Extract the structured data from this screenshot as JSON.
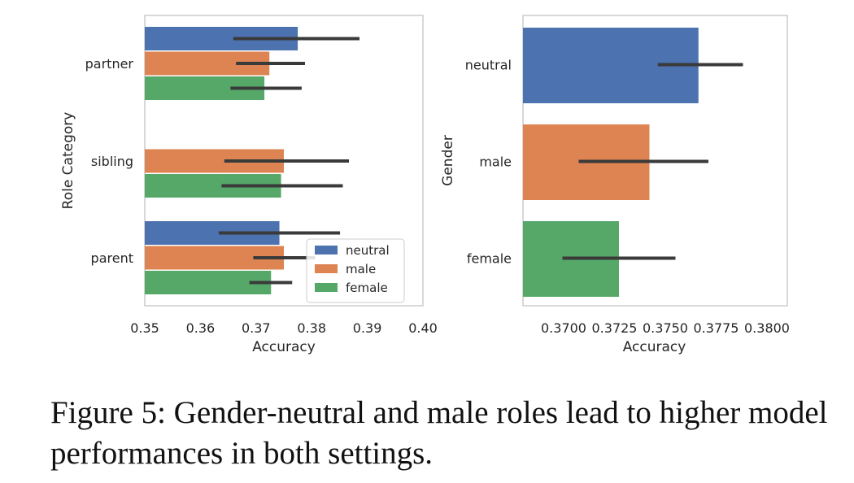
{
  "chart_data": [
    {
      "type": "bar",
      "orientation": "horizontal",
      "categories": [
        "partner",
        "sibling",
        "parent"
      ],
      "series": [
        {
          "name": "neutral",
          "color": "#4c72b0",
          "values": [
            0.3775,
            null,
            0.3742
          ],
          "error": [
            [
              0.3659,
              0.3886
            ],
            null,
            [
              0.3633,
              0.3851
            ]
          ]
        },
        {
          "name": "male",
          "color": "#dd8452",
          "values": [
            0.3724,
            0.375,
            0.375
          ],
          "error": [
            [
              0.3664,
              0.3788
            ],
            [
              0.3643,
              0.3867
            ],
            [
              0.3695,
              0.3806
            ]
          ]
        },
        {
          "name": "female",
          "color": "#55a868",
          "values": [
            0.3715,
            0.3745,
            0.3727
          ],
          "error": [
            [
              0.3654,
              0.3782
            ],
            [
              0.3638,
              0.3856
            ],
            [
              0.3688,
              0.3765
            ]
          ]
        }
      ],
      "xlabel": "Accuracy",
      "ylabel": "Role Category",
      "xlim": [
        0.35,
        0.4
      ],
      "xticks": [
        "0.35",
        "0.36",
        "0.37",
        "0.38",
        "0.39",
        "0.40"
      ],
      "legend": {
        "placement": "lower-right",
        "entries": [
          "neutral",
          "male",
          "female"
        ]
      },
      "grid": false
    },
    {
      "type": "bar",
      "orientation": "horizontal",
      "categories": [
        "neutral",
        "male",
        "female"
      ],
      "colors": [
        "#4c72b0",
        "#dd8452",
        "#55a868"
      ],
      "values": [
        0.37663,
        0.37422,
        0.37272
      ],
      "error": [
        [
          0.37463,
          0.37882
        ],
        [
          0.37074,
          0.37712
        ],
        [
          0.36994,
          0.3755
        ]
      ],
      "xlabel": "Accuracy",
      "ylabel": "Gender",
      "xlim": [
        0.368,
        0.381
      ],
      "xticks": [
        "0.3700",
        "0.3725",
        "0.3750",
        "0.3775",
        "0.3800"
      ],
      "grid": false
    }
  ],
  "caption": "Figure 5: Gender-neutral and male roles lead to higher model performances in both settings."
}
